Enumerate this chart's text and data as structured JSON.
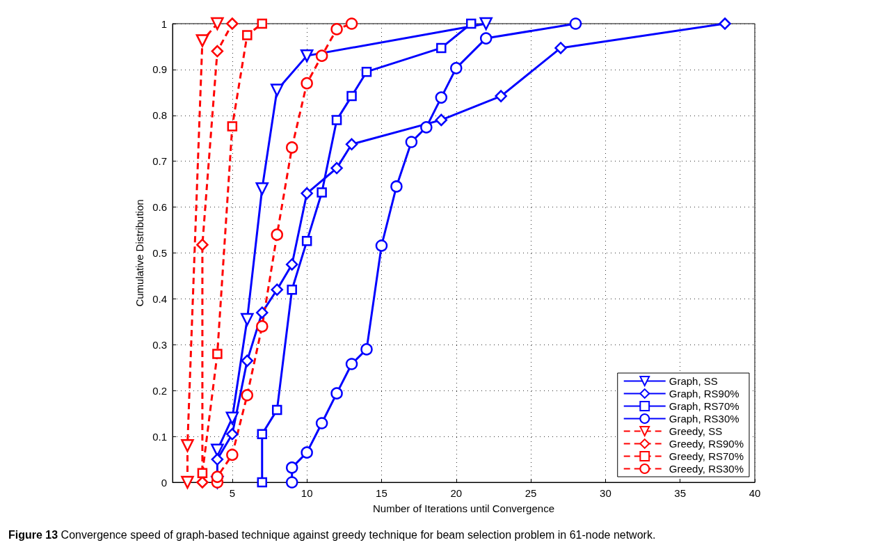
{
  "chart_data": {
    "type": "line",
    "xlabel": "Number of Iterations until Convergence",
    "ylabel": "Cumulative Distribution",
    "xlim": [
      1,
      40
    ],
    "xticks": [
      5,
      10,
      15,
      20,
      25,
      30,
      35,
      40
    ],
    "ylim": [
      0,
      1
    ],
    "yticks": [
      0,
      0.1,
      0.2,
      0.3,
      0.4,
      0.5,
      0.6,
      0.7,
      0.8,
      0.9,
      1
    ],
    "grid": true,
    "legend": "bottom right",
    "annotations": [
      "Figure 13 Convergence speed of graph-based technique against greedy technique for beam selection problem in 61-node network."
    ],
    "series": [
      {
        "name": "Graph, SS",
        "color": "#0000ff",
        "marker": "triangle",
        "line_style": "solid",
        "x": [
          4,
          4,
          5,
          6,
          7,
          8,
          10,
          22
        ],
        "values": [
          0,
          0.07,
          0.14,
          0.355,
          0.64,
          0.855,
          0.93,
          1
        ]
      },
      {
        "name": "Graph, RS90%",
        "color": "#0000ff",
        "marker": "diamond",
        "line_style": "solid",
        "x": [
          4,
          5,
          6,
          7,
          8,
          9,
          10,
          12,
          13,
          19,
          23,
          27,
          38
        ],
        "values": [
          0.05,
          0.105,
          0.265,
          0.37,
          0.42,
          0.475,
          0.63,
          0.685,
          0.737,
          0.79,
          0.842,
          0.947,
          1
        ]
      },
      {
        "name": "Graph, RS70%",
        "color": "#0000ff",
        "marker": "square",
        "line_style": "solid",
        "x": [
          7,
          7,
          8,
          9,
          10,
          11,
          12,
          13,
          14,
          19,
          21
        ],
        "values": [
          0,
          0.105,
          0.158,
          0.42,
          0.526,
          0.632,
          0.79,
          0.842,
          0.895,
          0.947,
          1
        ]
      },
      {
        "name": "Graph, RS30%",
        "color": "#0000ff",
        "marker": "circle",
        "line_style": "solid",
        "x": [
          9,
          9,
          10,
          11,
          12,
          13,
          14,
          15,
          16,
          17,
          18,
          19,
          20,
          22,
          28
        ],
        "values": [
          0,
          0.032,
          0.065,
          0.129,
          0.194,
          0.258,
          0.29,
          0.516,
          0.645,
          0.742,
          0.774,
          0.839,
          0.903,
          0.968,
          1
        ]
      },
      {
        "name": "Greedy, SS",
        "color": "#ff0000",
        "marker": "triangle",
        "line_style": "dashed",
        "x": [
          2,
          2,
          3,
          4
        ],
        "values": [
          0,
          0.08,
          0.963,
          1
        ]
      },
      {
        "name": "Greedy, RS90%",
        "color": "#ff0000",
        "marker": "diamond",
        "line_style": "dashed",
        "x": [
          3,
          3,
          4,
          5
        ],
        "values": [
          0,
          0.518,
          0.94,
          1
        ]
      },
      {
        "name": "Greedy, RS70%",
        "color": "#ff0000",
        "marker": "square",
        "line_style": "dashed",
        "x": [
          3,
          4,
          5,
          6,
          7
        ],
        "values": [
          0.02,
          0.28,
          0.776,
          0.975,
          1
        ]
      },
      {
        "name": "Greedy, RS30%",
        "color": "#ff0000",
        "marker": "circle",
        "line_style": "dashed",
        "x": [
          4,
          4,
          5,
          6,
          7,
          8,
          9,
          10,
          11,
          12,
          13
        ],
        "values": [
          0,
          0.012,
          0.06,
          0.19,
          0.34,
          0.54,
          0.73,
          0.87,
          0.93,
          0.988,
          1
        ]
      }
    ]
  }
}
